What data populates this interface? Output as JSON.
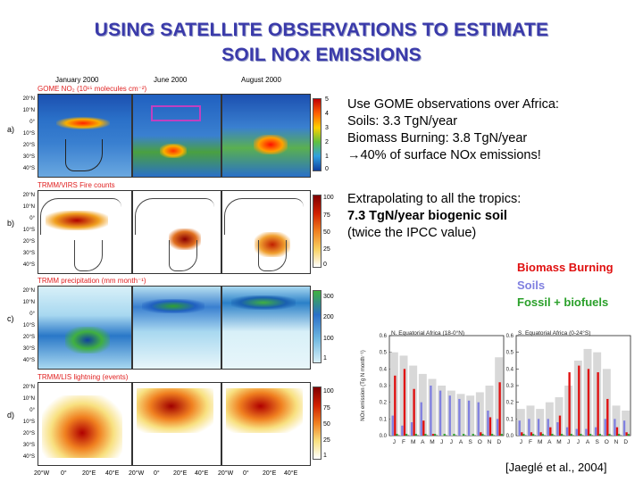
{
  "title": {
    "line1": "USING SATELLITE OBSERVATIONS TO ESTIMATE",
    "line2": "SOIL NOx EMISSIONS"
  },
  "map_columns": [
    "January 2000",
    "June 2000",
    "August 2000"
  ],
  "map_rows": [
    {
      "label": "a)",
      "title": "GOME NO₂ (10¹⁵ molecules cm⁻²)",
      "colorbar_ticks": [
        "5",
        "4",
        "3",
        "2",
        "1",
        "0"
      ]
    },
    {
      "label": "b)",
      "title": "TRMM/VIRS Fire counts",
      "colorbar_ticks": [
        "100",
        "75",
        "50",
        "25",
        "0"
      ]
    },
    {
      "label": "c)",
      "title": "TRMM precipitation (mm month⁻¹)",
      "colorbar_ticks": [
        "300",
        "200",
        "100",
        "1"
      ]
    },
    {
      "label": "d)",
      "title": "TRMM/LIS lightning (events)",
      "colorbar_ticks": [
        "100",
        "75",
        "50",
        "25",
        "1"
      ]
    }
  ],
  "lat_labels": [
    "20°N",
    "10°N",
    "0°",
    "10°S",
    "20°S",
    "30°S",
    "40°S"
  ],
  "lon_labels": [
    "20°W",
    "0°",
    "20°E",
    "40°E",
    "20°W",
    "0°",
    "20°E",
    "40°E",
    "20°W",
    "0°",
    "20°E",
    "40°E"
  ],
  "text_block1": {
    "line1": "Use GOME observations over Africa:",
    "line2": "Soils: 3.3 TgN/year",
    "line3": "Biomass Burning: 3.8  TgN/year",
    "line4_arrow": "→",
    "line4": "40% of surface NOx emissions!"
  },
  "text_block2": {
    "line1": "Extrapolating to all the tropics:",
    "line2": "7.3 TgN/year biogenic soil",
    "line3": "(twice the IPCC value)"
  },
  "legend": {
    "biomass": "Biomass Burning",
    "soils": "Soils",
    "fossil": "Fossil + biofuels"
  },
  "colors": {
    "title": "#3a3aaa",
    "biomass": "#e01010",
    "soils": "#8080e0",
    "fossil": "#2aa02a",
    "total_bar": "#d8d8d8"
  },
  "citation": "[Jaeglé et al., 2004]",
  "chart_data": [
    {
      "type": "bar",
      "title": "N. Equatorial Africa (18-0°N)",
      "ylabel": "NOx emission (Tg N month⁻¹)",
      "ylim": [
        0,
        0.6
      ],
      "yticks": [
        "0.0",
        "0.1",
        "0.2",
        "0.3",
        "0.4",
        "0.5",
        "0.6"
      ],
      "categories": [
        "J",
        "F",
        "M",
        "A",
        "M",
        "J",
        "J",
        "A",
        "S",
        "O",
        "N",
        "D"
      ],
      "series": [
        {
          "name": "Total",
          "values": [
            0.5,
            0.48,
            0.42,
            0.37,
            0.34,
            0.3,
            0.27,
            0.25,
            0.24,
            0.26,
            0.3,
            0.47
          ]
        },
        {
          "name": "Biomass Burning",
          "values": [
            0.36,
            0.4,
            0.28,
            0.09,
            0.01,
            0.0,
            0.0,
            0.0,
            0.0,
            0.02,
            0.11,
            0.32
          ]
        },
        {
          "name": "Soils",
          "values": [
            0.12,
            0.06,
            0.08,
            0.2,
            0.3,
            0.27,
            0.24,
            0.22,
            0.21,
            0.2,
            0.15,
            0.1
          ]
        },
        {
          "name": "Fossil + biofuels",
          "values": [
            0.01,
            0.01,
            0.01,
            0.01,
            0.01,
            0.01,
            0.01,
            0.01,
            0.01,
            0.01,
            0.01,
            0.01
          ]
        }
      ]
    },
    {
      "type": "bar",
      "title": "S. Equatorial Africa (0-24°S)",
      "ylabel": "",
      "ylim": [
        0,
        0.6
      ],
      "yticks": [
        "0.0",
        "0.1",
        "0.2",
        "0.3",
        "0.4",
        "0.5",
        "0.6"
      ],
      "categories": [
        "J",
        "F",
        "M",
        "A",
        "M",
        "J",
        "J",
        "A",
        "S",
        "O",
        "N",
        "D"
      ],
      "series": [
        {
          "name": "Total",
          "values": [
            0.16,
            0.18,
            0.16,
            0.2,
            0.23,
            0.3,
            0.45,
            0.52,
            0.5,
            0.4,
            0.18,
            0.15
          ]
        },
        {
          "name": "Biomass Burning",
          "values": [
            0.02,
            0.02,
            0.02,
            0.05,
            0.12,
            0.38,
            0.42,
            0.4,
            0.38,
            0.22,
            0.05,
            0.02
          ]
        },
        {
          "name": "Soils",
          "values": [
            0.09,
            0.1,
            0.1,
            0.1,
            0.08,
            0.05,
            0.04,
            0.04,
            0.05,
            0.1,
            0.1,
            0.09
          ]
        },
        {
          "name": "Fossil + biofuels",
          "values": [
            0.01,
            0.01,
            0.01,
            0.01,
            0.01,
            0.01,
            0.01,
            0.01,
            0.01,
            0.01,
            0.01,
            0.01
          ]
        }
      ]
    }
  ]
}
